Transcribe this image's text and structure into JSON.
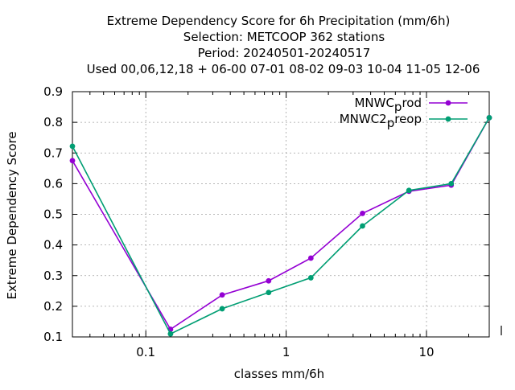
{
  "title_lines": [
    "Extreme Dependency Score  for 6h Precipitation (mm/6h)",
    "Selection: METCOOP    362 stations",
    "Period: 20240501-20240517",
    "Used  00,06,12,18 + 06-00 07-01 08-02 09-03 10-04 11-05 12-06"
  ],
  "colors": {
    "series1": "#9400d3",
    "series2": "#009e73",
    "grid": "#a0a0a0",
    "axis": "#000000"
  },
  "chart_data": {
    "type": "line",
    "xlabel": "classes mm/6h",
    "ylabel": "Extreme Dependency Score",
    "xscale": "log",
    "xlim": [
      0.03,
      28
    ],
    "ylim": [
      0.1,
      0.9
    ],
    "xticks": [
      {
        "value": 0.1,
        "label": "0.1"
      },
      {
        "value": 1,
        "label": "1"
      },
      {
        "value": 10,
        "label": "10"
      }
    ],
    "yticks": [
      {
        "value": 0.1,
        "label": "0.1"
      },
      {
        "value": 0.2,
        "label": "0.2"
      },
      {
        "value": 0.3,
        "label": "0.3"
      },
      {
        "value": 0.4,
        "label": "0.4"
      },
      {
        "value": 0.5,
        "label": "0.5"
      },
      {
        "value": 0.6,
        "label": "0.6"
      },
      {
        "value": 0.7,
        "label": "0.7"
      },
      {
        "value": 0.8,
        "label": "0.8"
      },
      {
        "value": 0.9,
        "label": "0.9"
      }
    ],
    "grid": true,
    "legend_position": "top-right",
    "series": [
      {
        "name_main": "MNWC",
        "name_sub": "p",
        "name_tail": "rod",
        "x": [
          0.03,
          0.15,
          0.35,
          0.75,
          1.5,
          3.5,
          7.5,
          15,
          28
        ],
        "y": [
          0.675,
          0.125,
          0.237,
          0.283,
          0.357,
          0.503,
          0.575,
          0.595,
          0.815
        ]
      },
      {
        "name_main": "MNWC2",
        "name_sub": "p",
        "name_tail": "reop",
        "x": [
          0.03,
          0.15,
          0.35,
          0.75,
          1.5,
          3.5,
          7.5,
          15,
          28
        ],
        "y": [
          0.722,
          0.11,
          0.192,
          0.245,
          0.293,
          0.462,
          0.578,
          0.6,
          0.815
        ]
      }
    ]
  }
}
